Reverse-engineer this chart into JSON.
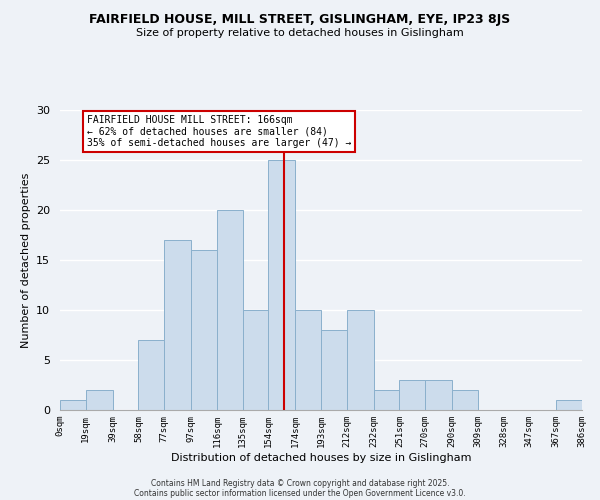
{
  "title1": "FAIRFIELD HOUSE, MILL STREET, GISLINGHAM, EYE, IP23 8JS",
  "title2": "Size of property relative to detached houses in Gislingham",
  "xlabel": "Distribution of detached houses by size in Gislingham",
  "ylabel": "Number of detached properties",
  "bin_edges": [
    0,
    19,
    39,
    58,
    77,
    97,
    116,
    135,
    154,
    174,
    193,
    212,
    232,
    251,
    270,
    290,
    309,
    328,
    347,
    367,
    386
  ],
  "bin_counts": [
    1,
    2,
    0,
    7,
    17,
    16,
    20,
    10,
    25,
    10,
    8,
    10,
    2,
    3,
    3,
    2,
    0,
    0,
    0,
    1
  ],
  "tick_labels": [
    "0sqm",
    "19sqm",
    "39sqm",
    "58sqm",
    "77sqm",
    "97sqm",
    "116sqm",
    "135sqm",
    "154sqm",
    "174sqm",
    "193sqm",
    "212sqm",
    "232sqm",
    "251sqm",
    "270sqm",
    "290sqm",
    "309sqm",
    "328sqm",
    "347sqm",
    "367sqm",
    "386sqm"
  ],
  "bar_color": "#ccdcec",
  "bar_edge_color": "#8ab0cc",
  "vline_x": 166,
  "vline_color": "#cc0000",
  "annotation_title": "FAIRFIELD HOUSE MILL STREET: 166sqm",
  "annotation_line1": "← 62% of detached houses are smaller (84)",
  "annotation_line2": "35% of semi-detached houses are larger (47) →",
  "annotation_box_facecolor": "#ffffff",
  "annotation_box_edgecolor": "#cc0000",
  "ylim": [
    0,
    30
  ],
  "yticks": [
    0,
    5,
    10,
    15,
    20,
    25,
    30
  ],
  "footer1": "Contains HM Land Registry data © Crown copyright and database right 2025.",
  "footer2": "Contains public sector information licensed under the Open Government Licence v3.0.",
  "background_color": "#eef2f7",
  "grid_color": "#ffffff",
  "spine_color": "#aaaaaa"
}
